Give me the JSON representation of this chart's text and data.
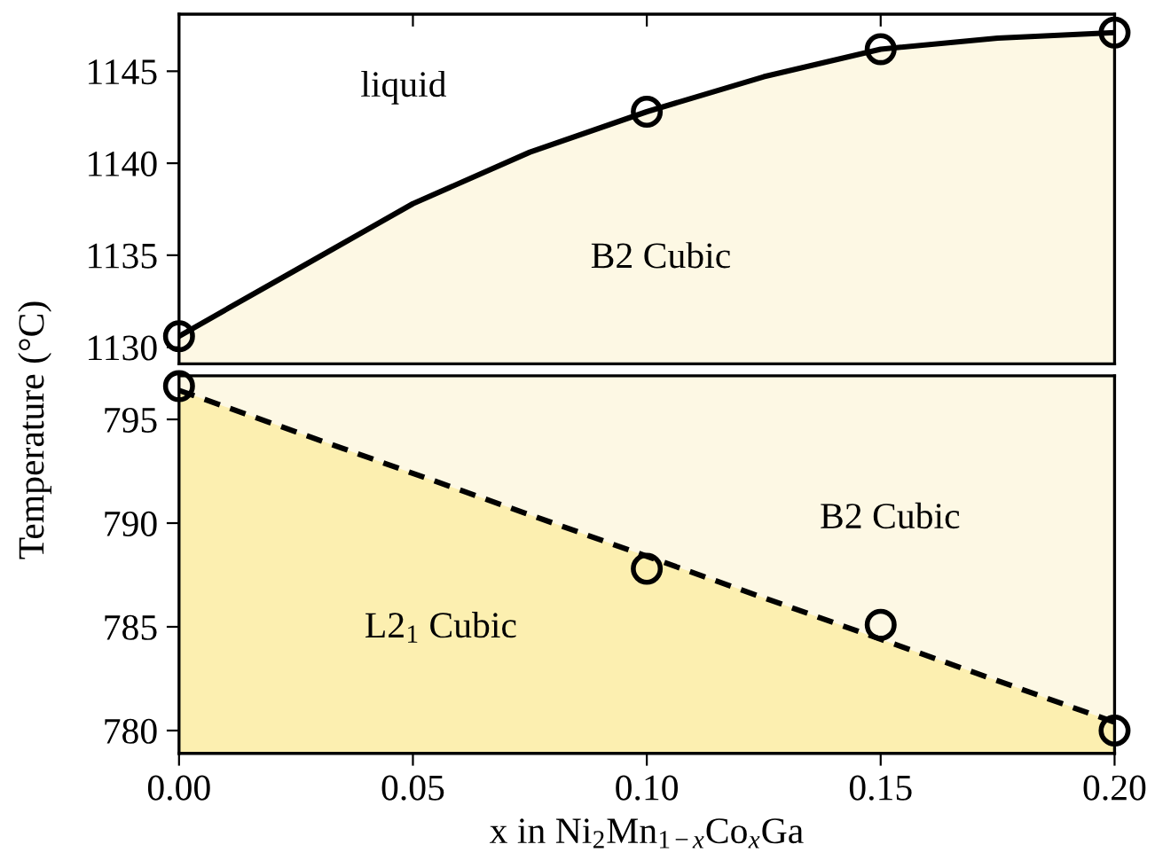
{
  "chart_data": [
    {
      "type": "line",
      "ylabel": "Temperature (°C)",
      "xlim": [
        0,
        0.2
      ],
      "xticks": [
        {
          "value": 0.05,
          "label": null
        },
        {
          "value": 0.1,
          "label": null
        },
        {
          "value": 0.15,
          "label": null
        }
      ],
      "ylim": [
        1129.1,
        1148.1
      ],
      "yticks": [
        1130,
        1135,
        1140,
        1145
      ],
      "tick_labels": "y",
      "grid": false,
      "series": [
        {
          "type": "area",
          "color": "#fdf8e4",
          "line_style": "solid",
          "x": [
            0,
            0.025,
            0.05,
            0.075,
            0.1,
            0.125,
            0.15,
            0.175,
            0.2
          ],
          "values": [
            1130.6,
            1134.2,
            1137.8,
            1140.6,
            1142.8,
            1144.7,
            1146.2,
            1146.8,
            1147.1
          ]
        },
        {
          "type": "scatter",
          "color": "#000000",
          "marker": "circle",
          "x": [
            0,
            0.1,
            0.15,
            0.2
          ],
          "values": [
            1130.6,
            1142.8,
            1146.2,
            1147.1
          ]
        }
      ],
      "annotations": [
        "liquid",
        "B2 Cubic"
      ]
    },
    {
      "type": "scatter",
      "xlabel": "x in Ni$_{2}$Mn$_{1−x}$Co$_{x}$Ga",
      "xlim": [
        0,
        0.2
      ],
      "xticks": [
        {
          "value": 0,
          "label": "0.00"
        },
        {
          "value": 0.05,
          "label": "0.05"
        },
        {
          "value": 0.1,
          "label": "0.10"
        },
        {
          "value": 0.15,
          "label": "0.15"
        },
        {
          "value": 0.2,
          "label": "0.20"
        }
      ],
      "ylim": [
        778.9,
        797.1
      ],
      "yticks": [
        780,
        785,
        790,
        795
      ],
      "grid": false,
      "bands": [
        {
          "axis": "y",
          "from": 778.9,
          "to": 797.1,
          "color": "#fdf8e4"
        }
      ],
      "series": [
        {
          "type": "area",
          "color": "#fcefb0",
          "line_style": "dashed",
          "x": [
            0,
            0.2
          ],
          "values": [
            796.4,
            780.4
          ]
        },
        {
          "color": "#000000",
          "marker": "circle",
          "x": [
            0,
            0.1,
            0.15,
            0.2
          ],
          "values": [
            796.6,
            787.8,
            785.1,
            780.0
          ]
        }
      ],
      "annotations": [
        "B2 Cubic",
        "L2$_{1}$ Cubic"
      ]
    }
  ]
}
